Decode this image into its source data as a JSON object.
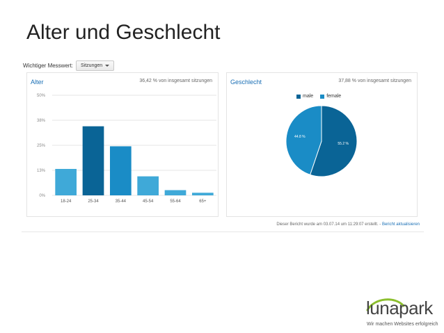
{
  "slide": {
    "title": "Alter und Geschlecht"
  },
  "report": {
    "metric_label": "Wichtiger Messwert:",
    "metric_value": "Sitzungen",
    "footer_prefix": "Dieser Bericht wurde am 03.07.14 um 11:29:07 erstellt. -",
    "footer_link": "Bericht aktualisieren"
  },
  "age_panel": {
    "title": "Alter",
    "share": "36,42 % von insgesamt sitzungen"
  },
  "gender_panel": {
    "title": "Geschlecht",
    "share": "37,88 % von insgesamt sitzungen"
  },
  "colors": {
    "light": "#3fa9d8",
    "dark": "#0a6496",
    "mid": "#1a8cc6"
  },
  "chart_data": [
    {
      "type": "bar",
      "categories": [
        "18-24",
        "25-34",
        "35-44",
        "45-54",
        "55-64",
        "65+"
      ],
      "values": [
        13.2,
        34.5,
        24.5,
        9.5,
        2.6,
        1.3
      ],
      "y_ticks": [
        "0%",
        "13%",
        "25%",
        "38%",
        "50%"
      ],
      "ylim": [
        0,
        50
      ],
      "grid": true
    },
    {
      "type": "pie",
      "labels": [
        "male",
        "female"
      ],
      "values": [
        55.2,
        44.8
      ],
      "slice_labels": [
        "55.2 %",
        "44.8 %"
      ],
      "legend": "top"
    }
  ],
  "logo": {
    "name": "lunapark",
    "tagline": "Wir machen Websites erfolgreich"
  }
}
